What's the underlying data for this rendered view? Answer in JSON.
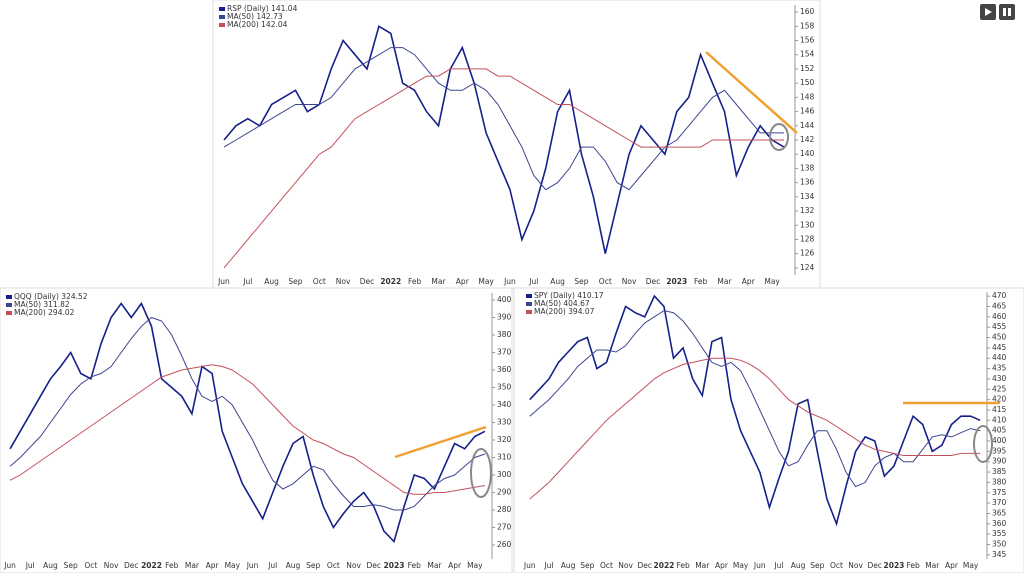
{
  "chart_data": [
    {
      "type": "line",
      "categories": [
        "Jun",
        null,
        "Jul",
        null,
        "Aug",
        null,
        "Sep",
        null,
        "Oct",
        null,
        "Nov",
        null,
        "Dec",
        null,
        "2022",
        null,
        "Feb",
        null,
        "Mar",
        null,
        "Apr",
        null,
        "May",
        null,
        "Jun",
        null,
        "Jul",
        null,
        "Aug",
        null,
        "Sep",
        null,
        "Oct",
        null,
        "Nov",
        null,
        "Dec",
        null,
        "2023",
        null,
        "Feb",
        null,
        "Mar",
        null,
        "Apr",
        null,
        "May",
        null
      ],
      "series": [
        {
          "name": "RSP (Daily) 141.04",
          "color": "#16208a",
          "values": [
            142,
            144,
            145,
            144,
            147,
            148,
            149,
            146,
            147,
            152,
            156,
            154,
            152,
            158,
            157,
            150,
            149,
            146,
            144,
            152,
            155,
            150,
            143,
            139,
            135,
            128,
            132,
            138,
            146,
            149,
            140,
            134,
            126,
            133,
            140,
            144,
            142,
            140,
            146,
            148,
            154,
            150,
            146,
            137,
            141,
            144,
            142,
            141
          ]
        },
        {
          "name": "MA(50) 142.73",
          "color": "#3c4690",
          "values": [
            141,
            142,
            143,
            144,
            145,
            146,
            147,
            147,
            147,
            148,
            150,
            152,
            153,
            154,
            155,
            155,
            154,
            152,
            150,
            149,
            149,
            150,
            149,
            147,
            144,
            141,
            137,
            135,
            136,
            138,
            141,
            141,
            139,
            136,
            135,
            137,
            139,
            141,
            142,
            144,
            146,
            148,
            149,
            147,
            145,
            143,
            143,
            143
          ]
        },
        {
          "name": "MA(200) 142.04",
          "color": "#c4505c",
          "values": [
            124,
            126,
            128,
            130,
            132,
            134,
            136,
            138,
            140,
            141,
            143,
            145,
            146,
            147,
            148,
            149,
            150,
            151,
            151,
            152,
            152,
            152,
            152,
            151,
            151,
            150,
            149,
            148,
            147,
            147,
            146,
            145,
            144,
            143,
            142,
            141,
            141,
            141,
            141,
            141,
            141,
            142,
            142,
            142,
            142,
            142,
            142,
            142
          ]
        }
      ],
      "ylim": [
        123,
        161
      ],
      "yticks": [
        124,
        126,
        128,
        130,
        132,
        134,
        136,
        138,
        140,
        142,
        144,
        146,
        148,
        150,
        152,
        154,
        156,
        158,
        160
      ]
    },
    {
      "type": "line",
      "categories": [
        "Jun",
        null,
        "Jul",
        null,
        "Aug",
        null,
        "Sep",
        null,
        "Oct",
        null,
        "Nov",
        null,
        "Dec",
        null,
        "2022",
        null,
        "Feb",
        null,
        "Mar",
        null,
        "Apr",
        null,
        "May",
        null,
        "Jun",
        null,
        "Jul",
        null,
        "Aug",
        null,
        "Sep",
        null,
        "Oct",
        null,
        "Nov",
        null,
        "Dec",
        null,
        "2023",
        null,
        "Feb",
        null,
        "Mar",
        null,
        "Apr",
        null,
        "May",
        null
      ],
      "series": [
        {
          "name": "QQQ (Daily) 324.52",
          "color": "#16208a",
          "values": [
            315,
            325,
            335,
            345,
            355,
            362,
            370,
            358,
            355,
            375,
            390,
            398,
            390,
            398,
            385,
            355,
            350,
            345,
            335,
            362,
            358,
            325,
            310,
            295,
            285,
            275,
            290,
            305,
            318,
            322,
            300,
            282,
            270,
            278,
            285,
            290,
            282,
            268,
            262,
            282,
            300,
            298,
            292,
            305,
            318,
            315,
            322,
            325
          ]
        },
        {
          "name": "MA(50) 311.82",
          "color": "#3c4690",
          "values": [
            305,
            310,
            316,
            322,
            330,
            338,
            346,
            352,
            356,
            358,
            362,
            370,
            378,
            385,
            390,
            388,
            380,
            368,
            355,
            345,
            342,
            345,
            340,
            330,
            320,
            308,
            297,
            292,
            295,
            300,
            305,
            303,
            295,
            288,
            282,
            282,
            283,
            282,
            280,
            280,
            282,
            288,
            294,
            298,
            300,
            305,
            310,
            312
          ]
        },
        {
          "name": "MA(200) 294.02",
          "color": "#c4505c",
          "values": [
            297,
            300,
            304,
            308,
            312,
            316,
            320,
            324,
            328,
            332,
            336,
            340,
            344,
            348,
            352,
            356,
            358,
            360,
            361,
            362,
            363,
            362,
            360,
            356,
            352,
            346,
            340,
            334,
            328,
            324,
            320,
            318,
            315,
            312,
            310,
            306,
            302,
            298,
            294,
            290,
            289,
            289,
            290,
            290,
            291,
            292,
            293,
            294
          ]
        }
      ],
      "ylim": [
        252,
        404
      ],
      "yticks": [
        260,
        270,
        280,
        290,
        300,
        310,
        320,
        330,
        340,
        350,
        360,
        370,
        380,
        390,
        400
      ]
    },
    {
      "type": "line",
      "categories": [
        "Jun",
        null,
        "Jul",
        null,
        "Aug",
        null,
        "Sep",
        null,
        "Oct",
        null,
        "Nov",
        null,
        "Dec",
        null,
        "2022",
        null,
        "Feb",
        null,
        "Mar",
        null,
        "Apr",
        null,
        "May",
        null,
        "Jun",
        null,
        "Jul",
        null,
        "Aug",
        null,
        "Sep",
        null,
        "Oct",
        null,
        "Nov",
        null,
        "Dec",
        null,
        "2023",
        null,
        "Feb",
        null,
        "Mar",
        null,
        "Apr",
        null,
        "May",
        null
      ],
      "series": [
        {
          "name": "SPY (Daily) 410.17",
          "color": "#16208a",
          "values": [
            420,
            425,
            430,
            438,
            443,
            448,
            450,
            435,
            438,
            452,
            465,
            462,
            460,
            470,
            465,
            440,
            445,
            430,
            422,
            448,
            450,
            420,
            405,
            395,
            385,
            368,
            382,
            395,
            418,
            420,
            395,
            372,
            360,
            378,
            395,
            402,
            400,
            383,
            388,
            400,
            412,
            408,
            395,
            398,
            408,
            412,
            412,
            410
          ]
        },
        {
          "name": "MA(50) 404.67",
          "color": "#3c4690",
          "values": [
            412,
            416,
            420,
            425,
            430,
            436,
            440,
            444,
            444,
            443,
            446,
            452,
            457,
            460,
            463,
            462,
            458,
            452,
            445,
            438,
            436,
            438,
            434,
            425,
            415,
            405,
            395,
            388,
            390,
            398,
            405,
            405,
            396,
            385,
            378,
            380,
            388,
            392,
            394,
            390,
            390,
            396,
            402,
            403,
            402,
            404,
            406,
            405
          ]
        },
        {
          "name": "MA(200) 394.07",
          "color": "#c4505c",
          "values": [
            372,
            376,
            380,
            385,
            390,
            395,
            400,
            405,
            410,
            414,
            418,
            422,
            426,
            430,
            433,
            435,
            437,
            438,
            439,
            440,
            440,
            440,
            439,
            437,
            434,
            430,
            425,
            420,
            417,
            414,
            412,
            410,
            407,
            404,
            401,
            398,
            396,
            395,
            394,
            393,
            393,
            393,
            393,
            393,
            393,
            394,
            394,
            394
          ]
        }
      ],
      "ylim": [
        343,
        472
      ],
      "yticks": [
        345,
        350,
        355,
        360,
        365,
        370,
        375,
        380,
        385,
        390,
        395,
        400,
        405,
        410,
        415,
        420,
        425,
        430,
        435,
        440,
        445,
        450,
        455,
        460,
        465,
        470
      ]
    }
  ]
}
